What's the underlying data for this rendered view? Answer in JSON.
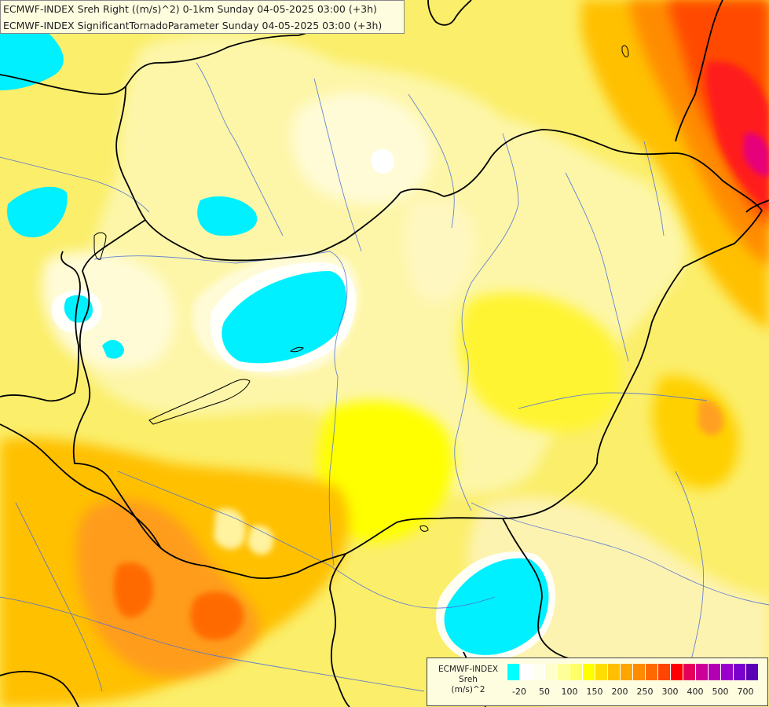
{
  "header": {
    "line1": "ECMWF-INDEX Sreh Right ((m/s)^2) 0-1km Sunday 04-05-2025 03:00 (+3h)",
    "line2": "ECMWF-INDEX SignificantTornadoParameter Sunday 04-05-2025 03:00 (+3h)"
  },
  "legend": {
    "title_line1": "ECMWF-INDEX",
    "title_line2": "Sreh",
    "title_line3": "(m/s)^2",
    "colors": [
      "#00ffff",
      "#ffffff",
      "#fffff0",
      "#ffffcc",
      "#ffff99",
      "#ffff66",
      "#ffff00",
      "#ffdd00",
      "#ffc000",
      "#ffa500",
      "#ff8c00",
      "#ff6a00",
      "#ff4500",
      "#ff0000",
      "#e6005c",
      "#cc0099",
      "#b300b3",
      "#9900cc",
      "#7a00cc",
      "#5c00b3",
      "#3d0099",
      "#1a0080"
    ],
    "ticks": [
      {
        "label": "-20",
        "cell": 0
      },
      {
        "label": "50",
        "cell": 2
      },
      {
        "label": "100",
        "cell": 4
      },
      {
        "label": "150",
        "cell": 6
      },
      {
        "label": "200",
        "cell": 8
      },
      {
        "label": "250",
        "cell": 10
      },
      {
        "label": "300",
        "cell": 12
      },
      {
        "label": "400",
        "cell": 14
      },
      {
        "label": "500",
        "cell": 16
      },
      {
        "label": "700",
        "cell": 18
      }
    ]
  }
}
